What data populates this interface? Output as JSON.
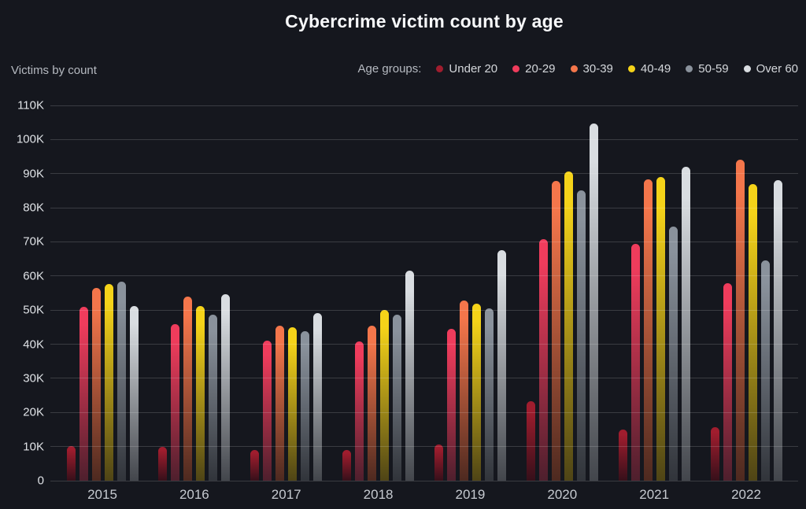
{
  "title": "Cybercrime victim count by age",
  "y_axis_title": "Victims by count",
  "legend": {
    "label": "Age groups:"
  },
  "colors": {
    "background": "#15171e",
    "gridline": "rgba(255,255,255,0.16)",
    "title_text": "#f7f8fa",
    "axis_text": "#dfe2e6",
    "muted_text": "#b6bac1"
  },
  "chart_data": {
    "type": "bar",
    "title": "Cybercrime victim count by age",
    "xlabel": "",
    "ylabel": "Victims by count",
    "unit": "thousands of victims",
    "categories": [
      "2015",
      "2016",
      "2017",
      "2018",
      "2019",
      "2020",
      "2021",
      "2022"
    ],
    "y_ticks": [
      "0",
      "10K",
      "20K",
      "30K",
      "40K",
      "50K",
      "60K",
      "70K",
      "80K",
      "90K",
      "100K",
      "110K"
    ],
    "ylim": [
      0,
      110
    ],
    "grid": true,
    "legend_position": "top-right",
    "series": [
      {
        "name": "Under 20",
        "color": "#a01d2e",
        "fade": "#310f19",
        "values": [
          10.1,
          10.0,
          9.1,
          9.1,
          10.7,
          23.2,
          14.9,
          15.8
        ]
      },
      {
        "name": "20-29",
        "color": "#ef3c5c",
        "fade": "#471e2b",
        "values": [
          50.9,
          46.0,
          41.1,
          40.9,
          44.5,
          70.8,
          69.4,
          57.8
        ]
      },
      {
        "name": "30-39",
        "color": "#f4764b",
        "fade": "#46261e",
        "values": [
          56.6,
          54.0,
          45.5,
          45.5,
          52.8,
          87.9,
          88.4,
          94.0
        ]
      },
      {
        "name": "40-49",
        "color": "#f5d319",
        "fade": "#473e16",
        "values": [
          57.6,
          51.1,
          44.9,
          50.0,
          51.9,
          90.6,
          89.0,
          87.0
        ]
      },
      {
        "name": "50-59",
        "color": "#8a929c",
        "fade": "#2d3036",
        "values": [
          58.3,
          48.6,
          43.8,
          48.6,
          50.6,
          85.2,
          74.5,
          64.5
        ]
      },
      {
        "name": "Over 60",
        "color": "#d9dde1",
        "fade": "#3c3f45",
        "values": [
          51.2,
          54.6,
          49.2,
          61.5,
          67.5,
          104.7,
          92.0,
          88.0
        ]
      }
    ]
  }
}
